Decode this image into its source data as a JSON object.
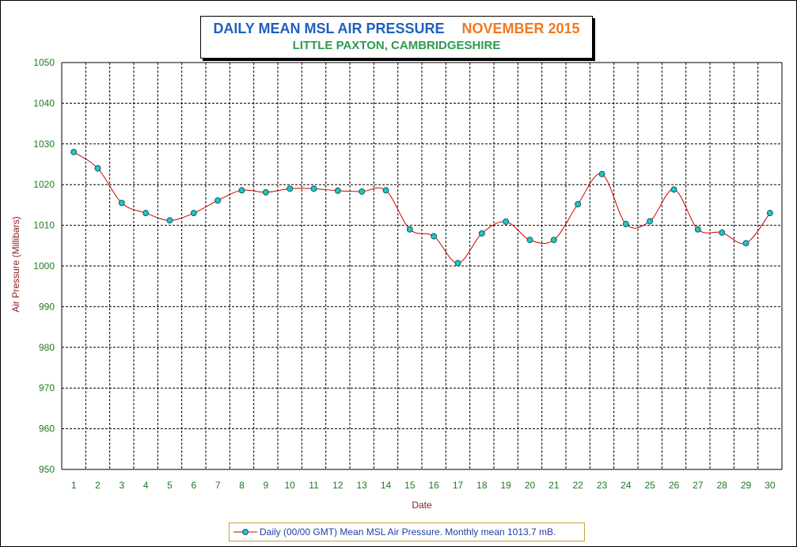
{
  "title": {
    "main": "DAILY MEAN MSL AIR PRESSURE",
    "month": "NOVEMBER 2015",
    "subtitle": "LITTLE PAXTON, CAMBRIDGESHIRE"
  },
  "colors": {
    "line": "#cc0000",
    "marker_fill": "#19c8c8",
    "marker_stroke": "#1a5a5a",
    "grid": "#000000",
    "tick_text": "#1d7a22",
    "axis_title": "#8b1a1a",
    "legend_text": "#1f3fa0",
    "legend_border": "#c8a040"
  },
  "chart_data": {
    "type": "line",
    "xlabel": "Date",
    "ylabel": "Air Pressure (Millibars)",
    "ylim": [
      950,
      1050
    ],
    "yticks": [
      950,
      960,
      970,
      980,
      990,
      1000,
      1010,
      1020,
      1030,
      1040,
      1050
    ],
    "grid": true,
    "smooth": true,
    "legend_position": "bottom-center",
    "x": [
      1,
      2,
      3,
      4,
      5,
      6,
      7,
      8,
      9,
      10,
      11,
      12,
      13,
      14,
      15,
      16,
      17,
      18,
      19,
      20,
      21,
      22,
      23,
      24,
      25,
      26,
      27,
      28,
      29,
      30
    ],
    "series": [
      {
        "name": "Daily (00/00 GMT) Mean MSL Air Pressure. Monthly mean 1013.7 mB.",
        "values": [
          1028.0,
          1024.0,
          1015.5,
          1013.0,
          1011.2,
          1013.0,
          1016.1,
          1018.6,
          1018.1,
          1019.0,
          1019.0,
          1018.5,
          1018.3,
          1018.6,
          1009.0,
          1007.3,
          1000.7,
          1008.0,
          1010.9,
          1006.4,
          1006.4,
          1015.2,
          1022.6,
          1010.3,
          1011.0,
          1018.8,
          1009.0,
          1008.2,
          1005.6,
          1013.0
        ]
      }
    ]
  }
}
